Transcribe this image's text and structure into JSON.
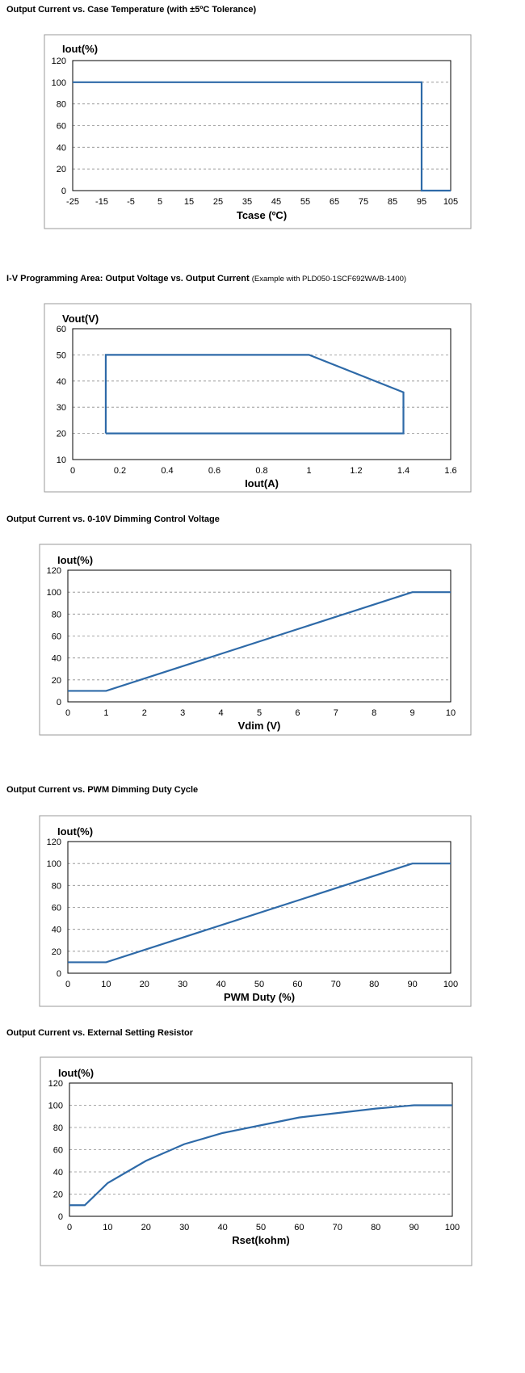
{
  "line_color": "#2e6aa8",
  "chart_data": [
    {
      "type": "line",
      "title": "Output Current vs. Case Temperature (with ±5ºC Tolerance)",
      "note": "",
      "xlabel": "Tcase (ºC)",
      "ylabel": "Iout(%)",
      "xlim": [
        -25,
        105
      ],
      "ylim": [
        0,
        120
      ],
      "x_ticks": [
        -25,
        -15,
        -5,
        5,
        15,
        25,
        35,
        45,
        55,
        65,
        75,
        85,
        95,
        105
      ],
      "y_ticks": [
        0,
        20,
        40,
        60,
        80,
        100,
        120
      ],
      "grid": "horizontal dashed",
      "series": [
        {
          "points": [
            [
              -25,
              100
            ],
            [
              95,
              100
            ],
            [
              95,
              0
            ],
            [
              105,
              0
            ]
          ]
        }
      ]
    },
    {
      "type": "line",
      "title": "I-V Programming Area: Output Voltage vs. Output Current",
      "note": "(Example with PLD050-1SCF692WA/B-1400)",
      "xlabel": "Iout(A)",
      "ylabel": "Vout(V)",
      "xlim": [
        0,
        1.6
      ],
      "ylim": [
        10,
        60
      ],
      "x_ticks": [
        0,
        0.2,
        0.4,
        0.6,
        0.8,
        1,
        1.2,
        1.4,
        1.6
      ],
      "y_ticks": [
        10,
        20,
        30,
        40,
        50,
        60
      ],
      "grid": "horizontal dashed",
      "series": [
        {
          "points": [
            [
              0.14,
              20
            ],
            [
              0.14,
              50
            ],
            [
              1.0,
              50
            ],
            [
              1.4,
              35.7
            ],
            [
              1.4,
              20
            ],
            [
              0.14,
              20
            ]
          ]
        }
      ]
    },
    {
      "type": "line",
      "title": "Output Current vs. 0-10V Dimming Control Voltage",
      "note": "",
      "xlabel": "Vdim (V)",
      "ylabel": "Iout(%)",
      "xlim": [
        0,
        10
      ],
      "ylim": [
        0,
        120
      ],
      "x_ticks": [
        0,
        1,
        2,
        3,
        4,
        5,
        6,
        7,
        8,
        9,
        10
      ],
      "y_ticks": [
        0,
        20,
        40,
        60,
        80,
        100,
        120
      ],
      "grid": "horizontal dashed",
      "series": [
        {
          "points": [
            [
              0,
              10
            ],
            [
              1,
              10
            ],
            [
              9,
              100
            ],
            [
              10,
              100
            ]
          ]
        }
      ]
    },
    {
      "type": "line",
      "title": "Output Current vs. PWM Dimming Duty Cycle",
      "note": "",
      "xlabel": "PWM Duty (%)",
      "ylabel": "Iout(%)",
      "xlim": [
        0,
        100
      ],
      "ylim": [
        0,
        120
      ],
      "x_ticks": [
        0,
        10,
        20,
        30,
        40,
        50,
        60,
        70,
        80,
        90,
        100
      ],
      "y_ticks": [
        0,
        20,
        40,
        60,
        80,
        100,
        120
      ],
      "grid": "horizontal dashed",
      "series": [
        {
          "points": [
            [
              0,
              10
            ],
            [
              10,
              10
            ],
            [
              90,
              100
            ],
            [
              100,
              100
            ]
          ]
        }
      ]
    },
    {
      "type": "line",
      "title": "Output Current vs. External Setting Resistor",
      "note": "",
      "xlabel": "Rset(kohm)",
      "ylabel": "Iout(%)",
      "xlim": [
        0,
        100
      ],
      "ylim": [
        0,
        120
      ],
      "x_ticks": [
        0,
        10,
        20,
        30,
        40,
        50,
        60,
        70,
        80,
        90,
        100
      ],
      "y_ticks": [
        0,
        20,
        40,
        60,
        80,
        100,
        120
      ],
      "grid": "horizontal dashed",
      "series": [
        {
          "points": [
            [
              0,
              10
            ],
            [
              4,
              10
            ],
            [
              10,
              30
            ],
            [
              20,
              50
            ],
            [
              30,
              65
            ],
            [
              40,
              75
            ],
            [
              50,
              82
            ],
            [
              60,
              89
            ],
            [
              70,
              93
            ],
            [
              80,
              97
            ],
            [
              90,
              100
            ],
            [
              100,
              100
            ]
          ]
        }
      ]
    }
  ]
}
